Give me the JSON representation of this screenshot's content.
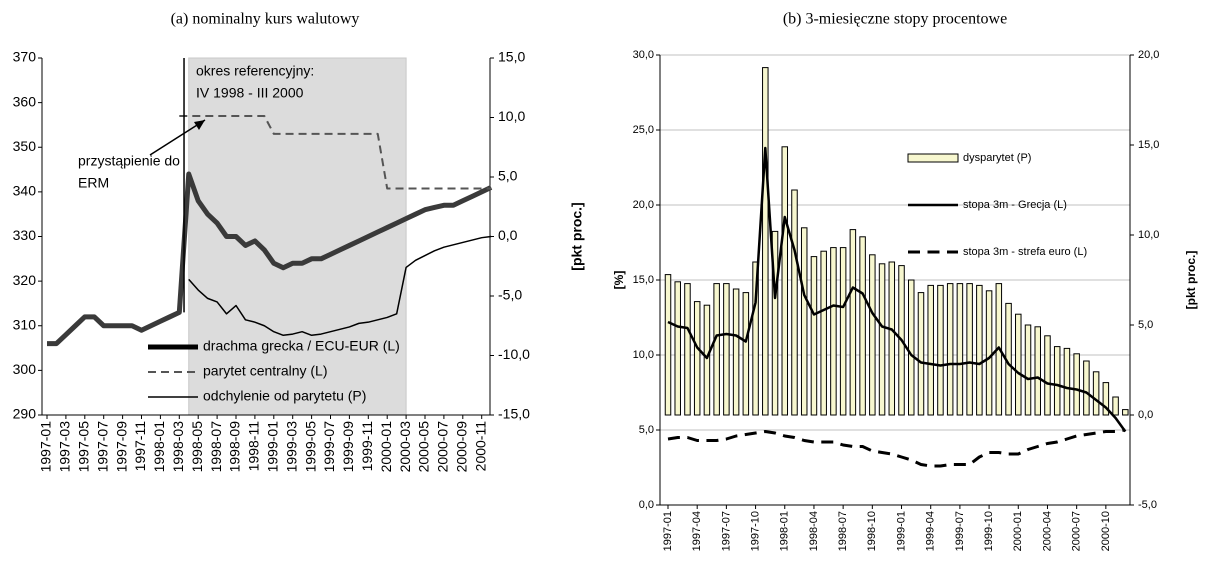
{
  "chart_data": [
    {
      "type": "line",
      "title": "(a) nominalny kurs walutowy",
      "y2label": "[pkt proc.]",
      "categories": [
        "1997-01",
        null,
        "1997-03",
        null,
        "1997-05",
        null,
        "1997-07",
        null,
        "1997-09",
        null,
        "1997-11",
        null,
        "1998-01",
        null,
        "1998-03",
        null,
        "1998-05",
        null,
        "1998-07",
        null,
        "1998-09",
        null,
        "1998-11",
        null,
        "1999-01",
        null,
        "1999-03",
        null,
        "1999-05",
        null,
        "1999-07",
        null,
        "1999-09",
        null,
        "1999-11",
        null,
        "2000-01",
        null,
        "2000-03",
        null,
        "2000-05",
        null,
        "2000-07",
        null,
        "2000-09",
        null,
        "2000-11",
        null
      ],
      "ylim": [
        290,
        370
      ],
      "yticks": [
        290,
        300,
        310,
        320,
        330,
        340,
        350,
        360,
        370
      ],
      "y2lim": [
        -15,
        15
      ],
      "y2ticks": [
        {
          "value": -15,
          "label": "-15,0"
        },
        {
          "value": -10,
          "label": "-10,0"
        },
        {
          "value": -5,
          "label": "-5,0"
        },
        {
          "value": 0,
          "label": "0,0"
        },
        {
          "value": 5,
          "label": "5,0"
        },
        {
          "value": 10,
          "label": "10,0"
        },
        {
          "value": 15,
          "label": "15,0"
        }
      ],
      "grid": false,
      "legend": "lower left",
      "annotations": [
        "okres referencyjny:",
        "IV 1998 - III 2000",
        "przystąpienie do",
        "ERM"
      ],
      "series": [
        {
          "name": "drachma grecka / ECU-EUR (L)",
          "color": "#3a3a3a",
          "linewidth": 5,
          "dash": false,
          "values": [
            306,
            306,
            308,
            310,
            312,
            312,
            310,
            310,
            310,
            310,
            309,
            310,
            311,
            312,
            313,
            344,
            338,
            335,
            333,
            330,
            330,
            328,
            329,
            327,
            324,
            323,
            324,
            324,
            325,
            325,
            326,
            327,
            328,
            329,
            330,
            331,
            332,
            333,
            334,
            335,
            336,
            336.5,
            337,
            337,
            338,
            339,
            340,
            341
          ]
        },
        {
          "name": "parytet centralny (L)",
          "color": "#555555",
          "linewidth": 2,
          "dash": true,
          "values": [
            null,
            null,
            null,
            null,
            null,
            null,
            null,
            null,
            null,
            null,
            null,
            null,
            null,
            null,
            357,
            357,
            357,
            357,
            357,
            357,
            357,
            357,
            357,
            357,
            353,
            353,
            353,
            353,
            353,
            353,
            353,
            353,
            353,
            353,
            353,
            353,
            340.75,
            340.75,
            340.75,
            340.75,
            340.75,
            340.75,
            340.75,
            340.75,
            340.75,
            340.75,
            340.75,
            340.75
          ]
        },
        {
          "name": "odchylenie od parytetu (P)",
          "color": "#000000",
          "linewidth": 1.5,
          "dash": false,
          "axis": "y2",
          "values": [
            null,
            null,
            null,
            null,
            null,
            null,
            null,
            null,
            null,
            null,
            null,
            null,
            null,
            null,
            null,
            -3.6,
            -4.5,
            -5.2,
            -5.5,
            -6.5,
            -5.8,
            -7.0,
            -7.2,
            -7.5,
            -8.0,
            -8.3,
            -8.2,
            -8.0,
            -8.3,
            -8.2,
            -8.0,
            -7.8,
            -7.6,
            -7.3,
            -7.2,
            -7.0,
            -6.8,
            -6.5,
            -2.6,
            -2.0,
            -1.6,
            -1.2,
            -0.9,
            -0.7,
            -0.5,
            -0.3,
            -0.1,
            0.0
          ]
        }
      ]
    },
    {
      "type": "bar",
      "title": "(b) 3-miesięczne stopy procentowe",
      "ylabel": "[%]",
      "y2label": "[pkt proc.]",
      "categories": [
        "1997-01",
        null,
        null,
        "1997-04",
        null,
        null,
        "1997-07",
        null,
        null,
        "1997-10",
        null,
        null,
        "1998-01",
        null,
        null,
        "1998-04",
        null,
        null,
        "1998-07",
        null,
        null,
        "1998-10",
        null,
        null,
        "1999-01",
        null,
        null,
        "1999-04",
        null,
        null,
        "1999-07",
        null,
        null,
        "1999-10",
        null,
        null,
        "2000-01",
        null,
        null,
        "2000-04",
        null,
        null,
        "2000-07",
        null,
        null,
        "2000-10",
        null,
        null
      ],
      "ylim": [
        0,
        30
      ],
      "yticks": [
        {
          "value": 0,
          "label": "0,0"
        },
        {
          "value": 5,
          "label": "5,0"
        },
        {
          "value": 10,
          "label": "10,0"
        },
        {
          "value": 15,
          "label": "15,0"
        },
        {
          "value": 20,
          "label": "20,0"
        },
        {
          "value": 25,
          "label": "25,0"
        },
        {
          "value": 30,
          "label": "30,0"
        }
      ],
      "y2lim": [
        -5,
        20
      ],
      "y2ticks": [
        {
          "value": -5,
          "label": "-5,0"
        },
        {
          "value": 0,
          "label": "0,0"
        },
        {
          "value": 5,
          "label": "5,0"
        },
        {
          "value": 10,
          "label": "10,0"
        },
        {
          "value": 15,
          "label": "15,0"
        },
        {
          "value": 20,
          "label": "20,0"
        }
      ],
      "grid": true,
      "legend": "upper center",
      "series": [
        {
          "name": "dysparytet (P)",
          "type": "bar",
          "color": "#f7f7cf",
          "axis": "y2",
          "values": [
            7.8,
            7.4,
            7.3,
            6.3,
            6.1,
            7.3,
            7.3,
            7.0,
            6.8,
            8.5,
            19.3,
            10.2,
            14.9,
            12.5,
            10.4,
            8.8,
            9.1,
            9.3,
            9.3,
            10.3,
            9.9,
            8.9,
            8.4,
            8.5,
            8.3,
            7.5,
            6.8,
            7.2,
            7.2,
            7.3,
            7.3,
            7.3,
            7.2,
            6.9,
            7.3,
            6.2,
            5.6,
            5.0,
            4.9,
            4.4,
            3.8,
            3.7,
            3.4,
            3.0,
            2.4,
            1.8,
            1.0,
            0.3
          ]
        },
        {
          "name": "stopa 3m - Grecja (L)",
          "type": "line",
          "color": "#000000",
          "linewidth": 2.5,
          "dash": false,
          "values": [
            12.2,
            11.9,
            11.8,
            10.5,
            9.8,
            11.3,
            11.4,
            11.3,
            10.9,
            13.5,
            23.8,
            13.8,
            19.2,
            17.0,
            14.0,
            12.7,
            13.0,
            13.3,
            13.2,
            14.5,
            14.1,
            12.8,
            11.9,
            11.7,
            11.0,
            10.0,
            9.5,
            9.4,
            9.3,
            9.4,
            9.4,
            9.5,
            9.4,
            9.8,
            10.5,
            9.4,
            8.8,
            8.4,
            8.5,
            8.1,
            8.0,
            7.8,
            7.7,
            7.5,
            7.0,
            6.5,
            5.8,
            4.9
          ]
        },
        {
          "name": "stopa 3m - strefa euro (L)",
          "type": "line",
          "color": "#000000",
          "linewidth": 3,
          "dash": true,
          "values": [
            4.4,
            4.5,
            4.5,
            4.3,
            4.3,
            4.3,
            4.4,
            4.6,
            4.7,
            4.8,
            4.9,
            4.8,
            4.6,
            4.5,
            4.3,
            4.2,
            4.2,
            4.2,
            4.0,
            3.9,
            3.9,
            3.6,
            3.5,
            3.4,
            3.2,
            3.0,
            2.7,
            2.6,
            2.6,
            2.7,
            2.7,
            2.7,
            3.2,
            3.5,
            3.5,
            3.4,
            3.4,
            3.7,
            3.9,
            4.1,
            4.2,
            4.4,
            4.6,
            4.7,
            4.8,
            4.9,
            4.9,
            5.0
          ]
        }
      ]
    }
  ]
}
